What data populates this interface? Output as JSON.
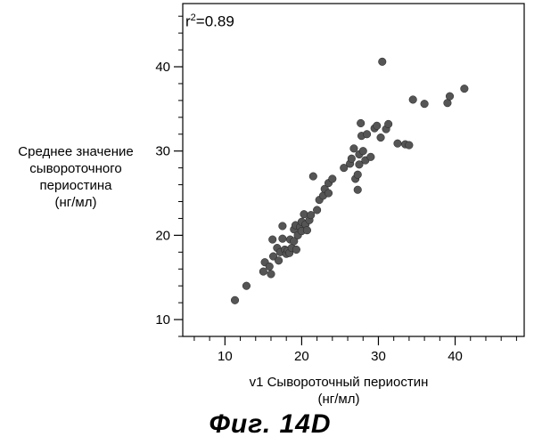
{
  "chart_data": {
    "type": "scatter",
    "title": "",
    "annotation": {
      "prefix": "r",
      "exponent": "2",
      "value": "=0.89"
    },
    "xlabel_lines": [
      "v1 Сывороточный периостин",
      "(нг/мл)"
    ],
    "ylabel_lines": [
      "Среднее значение",
      "сывороточного",
      "периостина",
      "(нг/мл)"
    ],
    "xlim": [
      4.5,
      49
    ],
    "ylim": [
      8,
      47.5
    ],
    "x_ticks": [
      10,
      20,
      30,
      40
    ],
    "y_ticks": [
      10,
      20,
      30,
      40
    ],
    "x_minor_step": 2,
    "y_minor_step": 2,
    "grid": false,
    "marker_color": "#555555",
    "points": [
      {
        "x": 11.3,
        "y": 12.3
      },
      {
        "x": 12.8,
        "y": 14.0
      },
      {
        "x": 15.0,
        "y": 15.7
      },
      {
        "x": 15.2,
        "y": 16.8
      },
      {
        "x": 15.8,
        "y": 16.3
      },
      {
        "x": 16.0,
        "y": 15.4
      },
      {
        "x": 16.3,
        "y": 17.5
      },
      {
        "x": 16.2,
        "y": 19.5
      },
      {
        "x": 16.8,
        "y": 18.5
      },
      {
        "x": 17.0,
        "y": 17.0
      },
      {
        "x": 17.2,
        "y": 18.0
      },
      {
        "x": 17.5,
        "y": 19.6
      },
      {
        "x": 17.5,
        "y": 21.1
      },
      {
        "x": 17.8,
        "y": 18.3
      },
      {
        "x": 18.0,
        "y": 17.8
      },
      {
        "x": 18.2,
        "y": 18.2
      },
      {
        "x": 18.4,
        "y": 17.9
      },
      {
        "x": 18.5,
        "y": 19.5
      },
      {
        "x": 18.7,
        "y": 18.5
      },
      {
        "x": 19.0,
        "y": 19.3
      },
      {
        "x": 19.0,
        "y": 20.7
      },
      {
        "x": 19.2,
        "y": 21.2
      },
      {
        "x": 19.3,
        "y": 18.3
      },
      {
        "x": 19.5,
        "y": 20.0
      },
      {
        "x": 19.8,
        "y": 21.0
      },
      {
        "x": 20.0,
        "y": 20.5
      },
      {
        "x": 20.0,
        "y": 21.6
      },
      {
        "x": 20.3,
        "y": 22.5
      },
      {
        "x": 20.5,
        "y": 21.3
      },
      {
        "x": 20.7,
        "y": 20.6
      },
      {
        "x": 21.0,
        "y": 21.8
      },
      {
        "x": 21.2,
        "y": 22.4
      },
      {
        "x": 21.5,
        "y": 27.0
      },
      {
        "x": 22.0,
        "y": 23.0
      },
      {
        "x": 22.3,
        "y": 24.2
      },
      {
        "x": 22.8,
        "y": 24.7
      },
      {
        "x": 23.0,
        "y": 25.5
      },
      {
        "x": 23.5,
        "y": 26.2
      },
      {
        "x": 24.0,
        "y": 26.7
      },
      {
        "x": 23.5,
        "y": 25.0
      },
      {
        "x": 25.5,
        "y": 28.0
      },
      {
        "x": 26.3,
        "y": 28.5
      },
      {
        "x": 26.5,
        "y": 29.1
      },
      {
        "x": 26.8,
        "y": 30.3
      },
      {
        "x": 27.0,
        "y": 26.7
      },
      {
        "x": 27.3,
        "y": 25.4
      },
      {
        "x": 27.3,
        "y": 27.2
      },
      {
        "x": 27.5,
        "y": 29.6
      },
      {
        "x": 27.5,
        "y": 28.4
      },
      {
        "x": 27.7,
        "y": 33.3
      },
      {
        "x": 27.8,
        "y": 31.8
      },
      {
        "x": 28.0,
        "y": 30.0
      },
      {
        "x": 28.3,
        "y": 28.9
      },
      {
        "x": 28.5,
        "y": 32.0
      },
      {
        "x": 29.0,
        "y": 29.3
      },
      {
        "x": 29.5,
        "y": 32.7
      },
      {
        "x": 29.8,
        "y": 33.0
      },
      {
        "x": 30.3,
        "y": 31.6
      },
      {
        "x": 30.5,
        "y": 40.6
      },
      {
        "x": 31.0,
        "y": 32.6
      },
      {
        "x": 31.3,
        "y": 33.2
      },
      {
        "x": 32.5,
        "y": 30.9
      },
      {
        "x": 33.5,
        "y": 30.8
      },
      {
        "x": 34.0,
        "y": 30.7
      },
      {
        "x": 34.5,
        "y": 36.1
      },
      {
        "x": 36.0,
        "y": 35.6
      },
      {
        "x": 39.0,
        "y": 35.7
      },
      {
        "x": 39.3,
        "y": 36.5
      },
      {
        "x": 41.2,
        "y": 37.4
      }
    ]
  },
  "figure_caption": "Фиг. 14D"
}
